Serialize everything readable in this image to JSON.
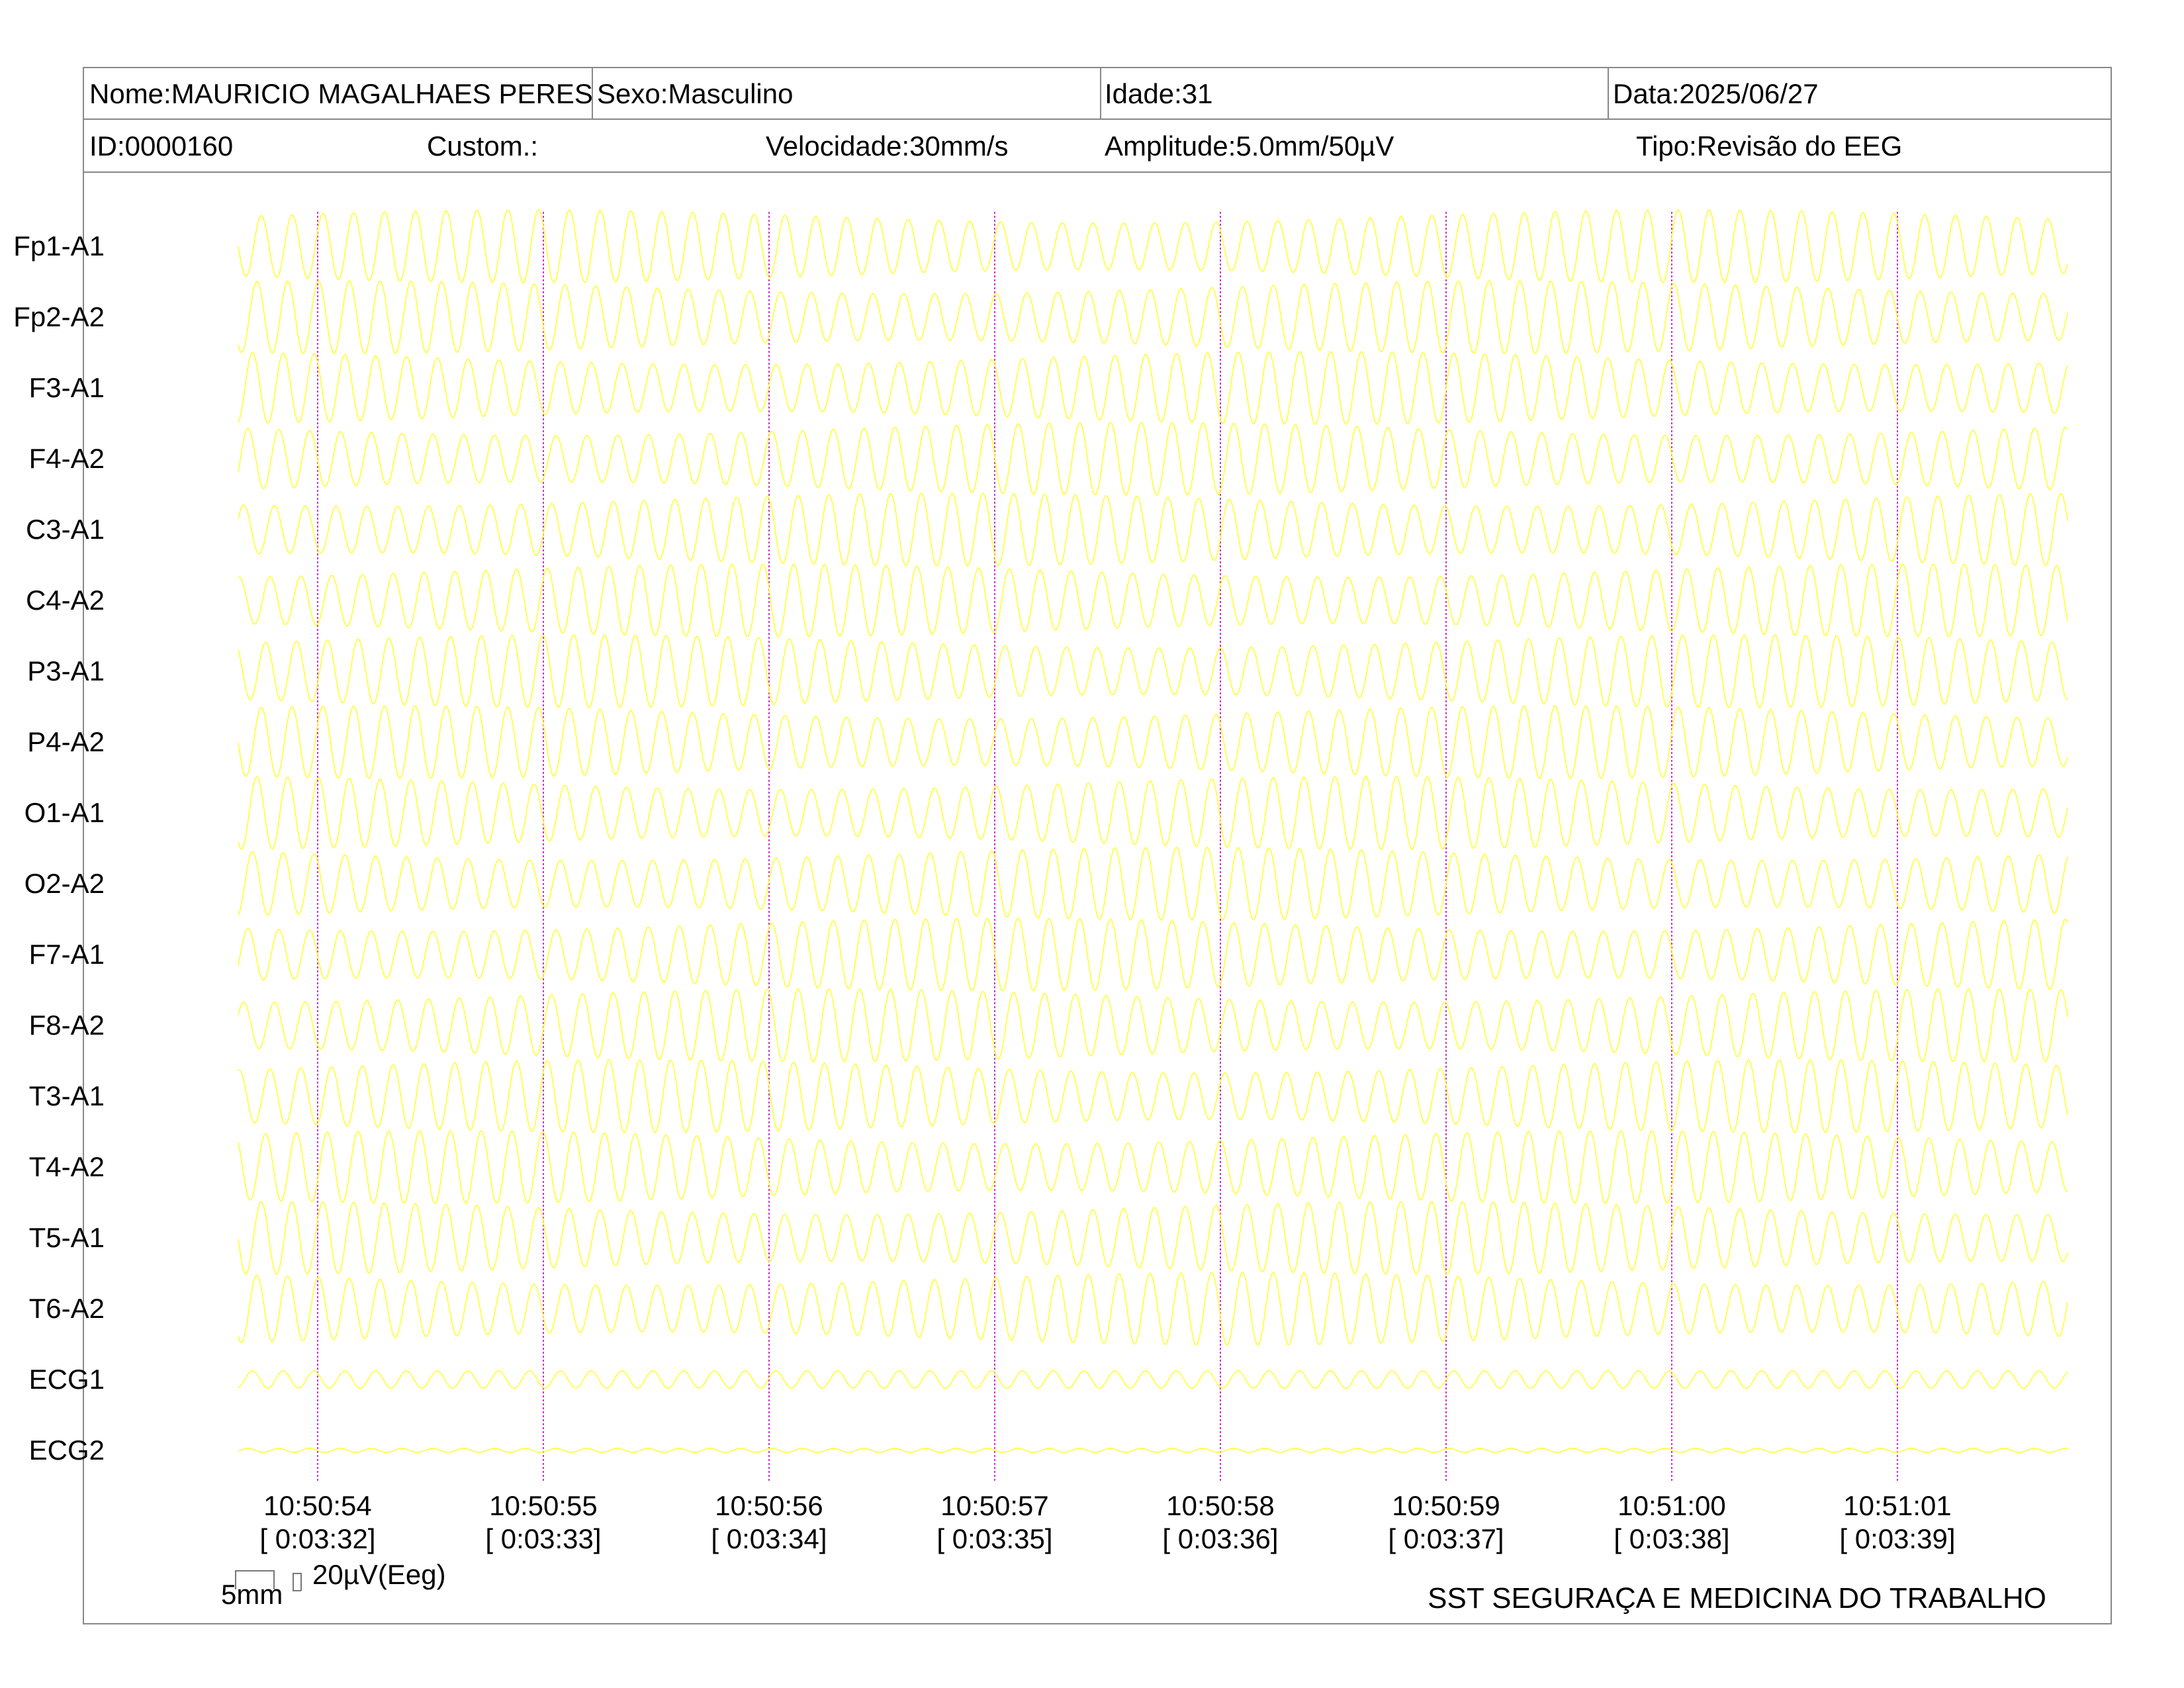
{
  "header": {
    "nome": "Nome:MAURICIO MAGALHAES PERES",
    "sexo": "Sexo:Masculino",
    "idade": "Idade:31",
    "data": "Data:2025/06/27",
    "id": "ID:0000160",
    "custom": "Custom.:",
    "velocidade": "Velocidade:30mm/s",
    "amplitude": "Amplitude:5.0mm/50µV",
    "tipo": "Tipo:Revisão do EEG"
  },
  "chart_data": {
    "type": "line",
    "trace_color": "#ffff33",
    "marker_color": "#cc33cc",
    "channels": [
      "Fp1-A1",
      "Fp2-A2",
      "F3-A1",
      "F4-A2",
      "C3-A1",
      "C4-A2",
      "P3-A1",
      "P4-A2",
      "O1-A1",
      "O2-A2",
      "F7-A1",
      "F8-A2",
      "T3-A1",
      "T4-A2",
      "T5-A1",
      "T6-A2",
      "ECG1",
      "ECG2"
    ],
    "time_markers": [
      {
        "clock": "10:50:54",
        "elapsed": "[ 0:03:32]"
      },
      {
        "clock": "10:50:55",
        "elapsed": "[ 0:03:33]"
      },
      {
        "clock": "10:50:56",
        "elapsed": "[ 0:03:34]"
      },
      {
        "clock": "10:50:57",
        "elapsed": "[ 0:03:35]"
      },
      {
        "clock": "10:50:58",
        "elapsed": "[ 0:03:36]"
      },
      {
        "clock": "10:50:59",
        "elapsed": "[ 0:03:37]"
      },
      {
        "clock": "10:51:00",
        "elapsed": "[ 0:03:38]"
      },
      {
        "clock": "10:51:01",
        "elapsed": "[ 0:03:39]"
      }
    ]
  },
  "scale": {
    "time_label": "5mm",
    "amp_label": "20µV(Eeg)"
  },
  "footer": "SST SEGURAÇA E MEDICINA DO TRABALHO"
}
